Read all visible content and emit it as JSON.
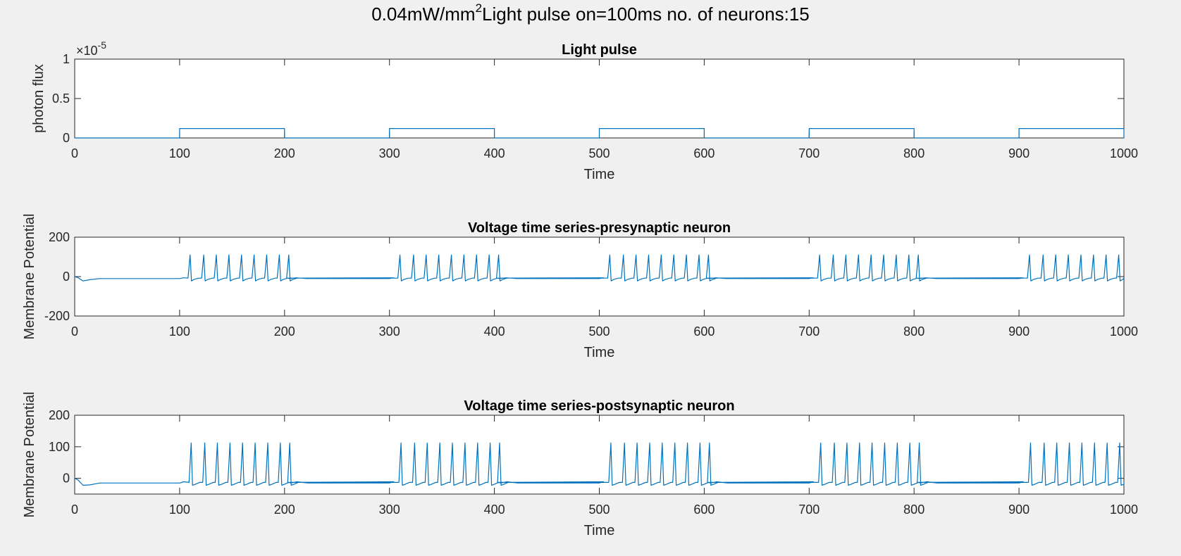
{
  "figure": {
    "suptitle_main": "0.04mW/mm",
    "suptitle_sup": "2",
    "suptitle_rest": "Light pulse on=100ms  no. of neurons:15"
  },
  "chart_data": [
    {
      "type": "line",
      "title": "Light pulse",
      "xlabel": "Time",
      "ylabel": "photon flux",
      "xlim": [
        0,
        1000
      ],
      "ylim": [
        0,
        1e-05
      ],
      "xticks": [
        0,
        100,
        200,
        300,
        400,
        500,
        600,
        700,
        800,
        900,
        1000
      ],
      "yticks": [
        0,
        0.5,
        1
      ],
      "yticklabels": [
        "0",
        "0.5",
        "1"
      ],
      "y_multiplier_base": "10",
      "y_multiplier_exp": "-5",
      "y_multiplier_prefix": "×",
      "grid": false,
      "color": "#0072bd",
      "pulse_on_value": 1.2e-06,
      "pulses": [
        [
          100,
          200
        ],
        [
          300,
          400
        ],
        [
          500,
          600
        ],
        [
          700,
          800
        ],
        [
          900,
          1000
        ]
      ]
    },
    {
      "type": "line",
      "title": "Voltage time series-presynaptic neuron",
      "xlabel": "Time",
      "ylabel": "Membrane Potential",
      "xlim": [
        0,
        1000
      ],
      "ylim": [
        -200,
        200
      ],
      "xticks": [
        0,
        100,
        200,
        300,
        400,
        500,
        600,
        700,
        800,
        900,
        1000
      ],
      "yticks": [
        -200,
        0,
        200
      ],
      "yticklabels": [
        "-200",
        "0",
        "200"
      ],
      "grid": false,
      "color": "#0072bd",
      "resting": -10,
      "spike_peak": 110,
      "spike_trough": -22,
      "spike_times": [
        110,
        123,
        135,
        147,
        159,
        171,
        183,
        195,
        204,
        310,
        323,
        335,
        347,
        359,
        371,
        383,
        395,
        404,
        510,
        523,
        535,
        547,
        559,
        571,
        583,
        595,
        604,
        710,
        723,
        735,
        747,
        759,
        771,
        783,
        795,
        804,
        910,
        923,
        935,
        947,
        959,
        971,
        983,
        995
      ]
    },
    {
      "type": "line",
      "title": "Voltage time series-postsynaptic neuron",
      "xlabel": "Time",
      "ylabel": "Membrane Potential",
      "xlim": [
        0,
        1000
      ],
      "ylim": [
        -50,
        200
      ],
      "xticks": [
        0,
        100,
        200,
        300,
        400,
        500,
        600,
        700,
        800,
        900,
        1000
      ],
      "yticks": [
        0,
        100,
        200
      ],
      "yticklabels": [
        "0",
        "100",
        "200"
      ],
      "grid": false,
      "color": "#0072bd",
      "resting": -15,
      "spike_peak": 112,
      "spike_trough": -22,
      "spike_times": [
        111,
        124,
        136,
        148,
        160,
        172,
        184,
        196,
        205,
        311,
        324,
        336,
        348,
        360,
        372,
        384,
        396,
        405,
        511,
        524,
        536,
        548,
        560,
        572,
        584,
        596,
        605,
        711,
        724,
        736,
        748,
        760,
        772,
        784,
        796,
        805,
        911,
        924,
        936,
        948,
        960,
        972,
        984,
        996
      ]
    }
  ]
}
